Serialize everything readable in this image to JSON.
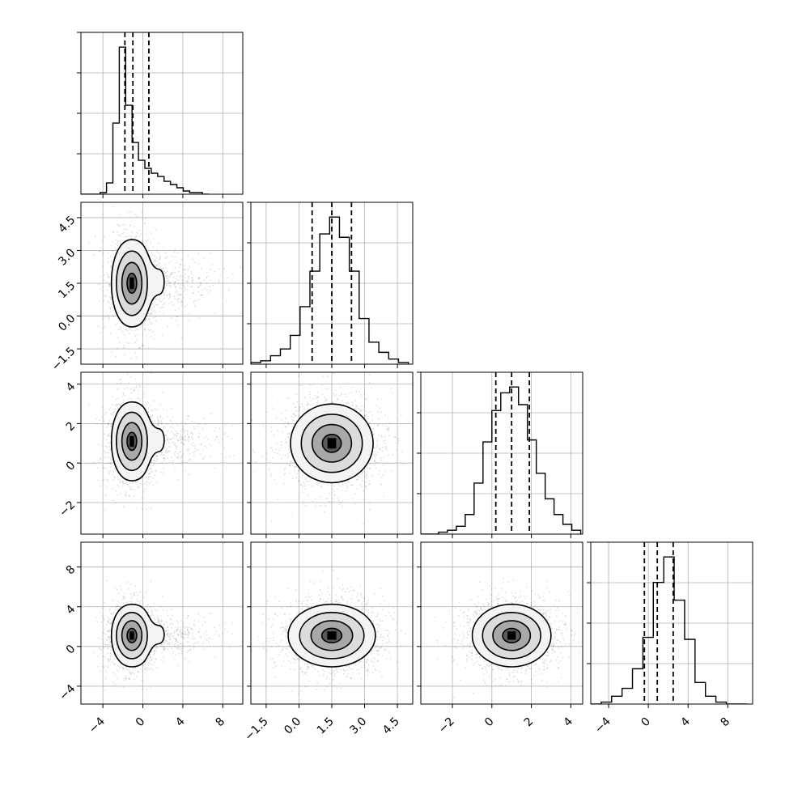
{
  "chart_data": {
    "type": "corner",
    "parameters": 4,
    "grid": true,
    "colors": {
      "frame": "#000000",
      "grid": "#b0b0b0",
      "samples": "#000000"
    },
    "quantile_lines": "dashed",
    "axes": [
      {
        "range": [
          -6.2,
          10.0
        ],
        "ticks": [
          -4,
          0,
          4,
          8
        ],
        "tick_labels": [
          "−4",
          "0",
          "4",
          "8"
        ],
        "marginal": {
          "bins": [
            -6.2,
            -5.56,
            -4.92,
            -4.28,
            -3.64,
            -3.0,
            -2.36,
            -1.72,
            -1.08,
            -0.44,
            0.2,
            0.84,
            1.48,
            2.12,
            2.76,
            3.4,
            4.04,
            4.68,
            5.32,
            5.96,
            6.6
          ],
          "values": [
            0,
            0,
            0,
            0.01,
            0.07,
            0.44,
            0.91,
            0.55,
            0.32,
            0.21,
            0.16,
            0.13,
            0.11,
            0.08,
            0.06,
            0.04,
            0.02,
            0.01,
            0.01,
            0
          ],
          "quantiles": [
            -1.8,
            -1.0,
            0.6
          ]
        }
      },
      {
        "range": [
          -2.2,
          5.2
        ],
        "ticks": [
          -1.5,
          0.0,
          1.5,
          3.0,
          4.5
        ],
        "tick_labels": [
          "−1.5",
          "0.0",
          "1.5",
          "3.0",
          "4.5"
        ],
        "marginal": {
          "bins": [
            -2.2,
            -1.75,
            -1.3,
            -0.85,
            -0.4,
            0.05,
            0.5,
            0.95,
            1.4,
            1.85,
            2.3,
            2.75,
            3.2,
            3.65,
            4.1,
            4.55,
            5.0
          ],
          "values": [
            0.01,
            0.02,
            0.05,
            0.09,
            0.17,
            0.34,
            0.55,
            0.77,
            0.87,
            0.75,
            0.55,
            0.27,
            0.13,
            0.07,
            0.03,
            0.01
          ],
          "quantiles": [
            0.6,
            1.5,
            2.4
          ]
        }
      },
      {
        "range": [
          -3.6,
          4.6
        ],
        "ticks": [
          -2,
          0,
          2,
          4
        ],
        "tick_labels": [
          "−2",
          "0",
          "2",
          "4"
        ],
        "marginal": {
          "bins": [
            -3.6,
            -3.15,
            -2.7,
            -2.25,
            -1.8,
            -1.35,
            -0.9,
            -0.45,
            0.0,
            0.45,
            0.9,
            1.35,
            1.8,
            2.25,
            2.7,
            3.15,
            3.6,
            4.05,
            4.5
          ],
          "values": [
            0,
            0,
            0.01,
            0.02,
            0.04,
            0.1,
            0.26,
            0.47,
            0.63,
            0.72,
            0.75,
            0.66,
            0.48,
            0.31,
            0.18,
            0.1,
            0.05,
            0.02
          ],
          "quantiles": [
            0.2,
            1.0,
            1.9
          ]
        }
      },
      {
        "range": [
          -5.8,
          10.5
        ],
        "ticks": [
          -4,
          0,
          4,
          8
        ],
        "tick_labels": [
          "−4",
          "0",
          "4",
          "8"
        ],
        "marginal": {
          "bins": [
            -5.8,
            -4.75,
            -3.7,
            -2.65,
            -1.6,
            -0.55,
            0.5,
            1.55,
            2.6,
            3.65,
            4.7,
            5.75,
            6.8,
            7.85,
            8.9,
            9.95
          ],
          "values": [
            0,
            0.01,
            0.04,
            0.08,
            0.18,
            0.34,
            0.62,
            0.75,
            0.53,
            0.33,
            0.11,
            0.04,
            0.01,
            0,
            0
          ],
          "quantiles": [
            -0.4,
            0.9,
            2.5
          ]
        }
      }
    ],
    "pairs": [
      {
        "x_param": 0,
        "y_param": 1,
        "center": [
          -1.1,
          1.5
        ],
        "spread": [
          1.0,
          0.95
        ],
        "skew_direction": "positive-x",
        "contour_levels": 4,
        "sample_points": 1500
      },
      {
        "x_param": 0,
        "y_param": 2,
        "center": [
          -1.1,
          1.1
        ],
        "spread": [
          1.0,
          0.95
        ],
        "skew_direction": "positive-x",
        "contour_levels": 4,
        "sample_points": 1500
      },
      {
        "x_param": 1,
        "y_param": 2,
        "center": [
          1.5,
          1.0
        ],
        "spread": [
          0.9,
          0.95
        ],
        "skew_direction": "none",
        "contour_levels": 4,
        "sample_points": 1500
      },
      {
        "x_param": 0,
        "y_param": 3,
        "center": [
          -1.1,
          1.1
        ],
        "spread": [
          1.0,
          1.5
        ],
        "skew_direction": "positive-x",
        "contour_levels": 4,
        "sample_points": 1500
      },
      {
        "x_param": 1,
        "y_param": 3,
        "center": [
          1.5,
          1.1
        ],
        "spread": [
          0.95,
          1.5
        ],
        "skew_direction": "none",
        "contour_levels": 4,
        "sample_points": 1500
      },
      {
        "x_param": 2,
        "y_param": 3,
        "center": [
          1.0,
          1.1
        ],
        "spread": [
          0.95,
          1.5
        ],
        "skew_direction": "none",
        "contour_levels": 4,
        "sample_points": 1500
      }
    ]
  }
}
